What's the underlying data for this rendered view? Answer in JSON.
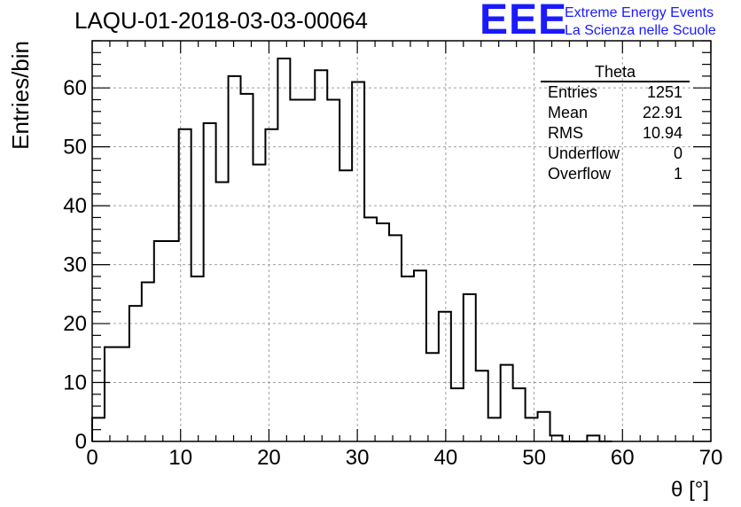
{
  "header": {
    "run_title": "LAQU-01-2018-03-03-00064",
    "logo": "EEE",
    "logo_line1": "Extreme Energy Events",
    "logo_line2": "La Scienza nelle Scuole"
  },
  "stats_box": {
    "name": "Theta",
    "rows": [
      {
        "label": "Entries",
        "value": "1251"
      },
      {
        "label": "Mean",
        "value": "22.91"
      },
      {
        "label": "RMS",
        "value": "10.94"
      },
      {
        "label": "Underflow",
        "value": "0"
      },
      {
        "label": "Overflow",
        "value": "1"
      }
    ]
  },
  "chart_data": {
    "type": "bar",
    "style": "step-histogram",
    "title": "LAQU-01-2018-03-03-00064",
    "xlabel": "θ [°]",
    "ylabel": "Entries/bin",
    "xlim": [
      0,
      70
    ],
    "ylim": [
      0,
      68
    ],
    "grid": true,
    "bin_width": 1.4,
    "bin_edges_start": 0,
    "values": [
      4,
      16,
      16,
      23,
      27,
      34,
      34,
      53,
      28,
      54,
      44,
      62,
      59,
      47,
      53,
      65,
      58,
      58,
      63,
      58,
      46,
      61,
      38,
      37,
      35,
      28,
      29,
      15,
      22,
      9,
      25,
      12,
      4,
      13,
      9,
      4,
      5,
      1,
      0,
      0,
      1,
      0
    ],
    "x_ticks": [
      0,
      10,
      20,
      30,
      40,
      50,
      60,
      70
    ],
    "y_ticks": [
      0,
      10,
      20,
      30,
      40,
      50,
      60
    ],
    "line_color": "#000000",
    "grid_color": "#a0a0a0"
  }
}
